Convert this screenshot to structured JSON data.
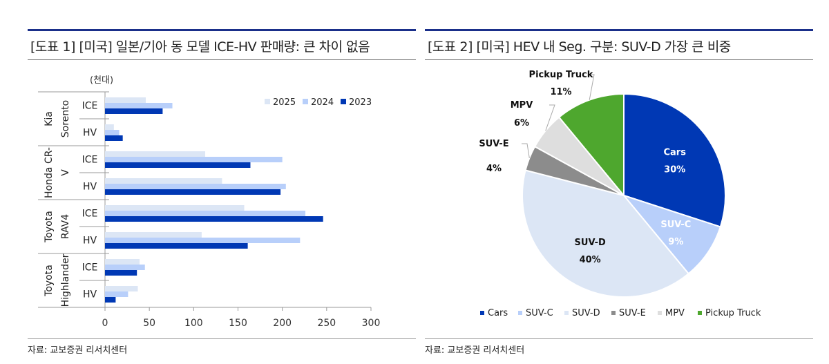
{
  "left": {
    "title": "[도표 1] [미국] 일본/기아 동 모델 ICE-HV 판매량: 큰 차이 없음",
    "source": "자료: 교보증권 리서치센터"
  },
  "right": {
    "title": "[도표 2] [미국] HEV 내 Seg. 구분: SUV-D 가장 큰 비중",
    "source": "자료: 교보증권 리서치센터"
  },
  "chart_data": [
    {
      "type": "bar",
      "orientation": "horizontal",
      "unit_label": "(천대)",
      "groups": [
        {
          "label": [
            "Kia",
            "Sorento"
          ],
          "categories": [
            "ICE",
            "HV"
          ]
        },
        {
          "label": [
            "Honda CR-",
            "V"
          ],
          "categories": [
            "ICE",
            "HV"
          ]
        },
        {
          "label": [
            "Toyota",
            "RAV4"
          ],
          "categories": [
            "ICE",
            "HV"
          ]
        },
        {
          "label": [
            "Toyota",
            "Highlander"
          ],
          "categories": [
            "ICE",
            "HV"
          ]
        }
      ],
      "series": [
        {
          "name": "2025",
          "color": "#dce6f5",
          "values": [
            46,
            10,
            113,
            132,
            157,
            109,
            39,
            37
          ]
        },
        {
          "name": "2024",
          "color": "#b8cffa",
          "values": [
            76,
            16,
            200,
            204,
            226,
            220,
            45,
            26
          ]
        },
        {
          "name": "2023",
          "color": "#0038b4",
          "values": [
            65,
            20,
            164,
            198,
            246,
            161,
            36,
            12
          ]
        }
      ],
      "xlim": [
        0,
        300
      ],
      "xticks": [
        "0",
        "50",
        "100",
        "150",
        "200",
        "250",
        "300"
      ],
      "legend": "top-right"
    },
    {
      "type": "pie",
      "slices": [
        {
          "name": "Cars",
          "value": 30,
          "label": "30%",
          "color": "#0038b4",
          "text_color": "#ffffff"
        },
        {
          "name": "SUV-C",
          "value": 9,
          "label": "9%",
          "color": "#b8cffa",
          "text_color": "#ffffff"
        },
        {
          "name": "SUV-D",
          "value": 40,
          "label": "40%",
          "color": "#dce6f5",
          "text_color": "#111111"
        },
        {
          "name": "SUV-E",
          "value": 4,
          "label": "4%",
          "color": "#8c8c8c",
          "text_color": "#111111"
        },
        {
          "name": "MPV",
          "value": 6,
          "label": "6%",
          "color": "#dedede",
          "text_color": "#111111"
        },
        {
          "name": "Pickup Truck",
          "value": 11,
          "label": "11%",
          "color": "#4ea72e",
          "text_color": "#111111"
        }
      ],
      "legend": "bottom"
    }
  ]
}
